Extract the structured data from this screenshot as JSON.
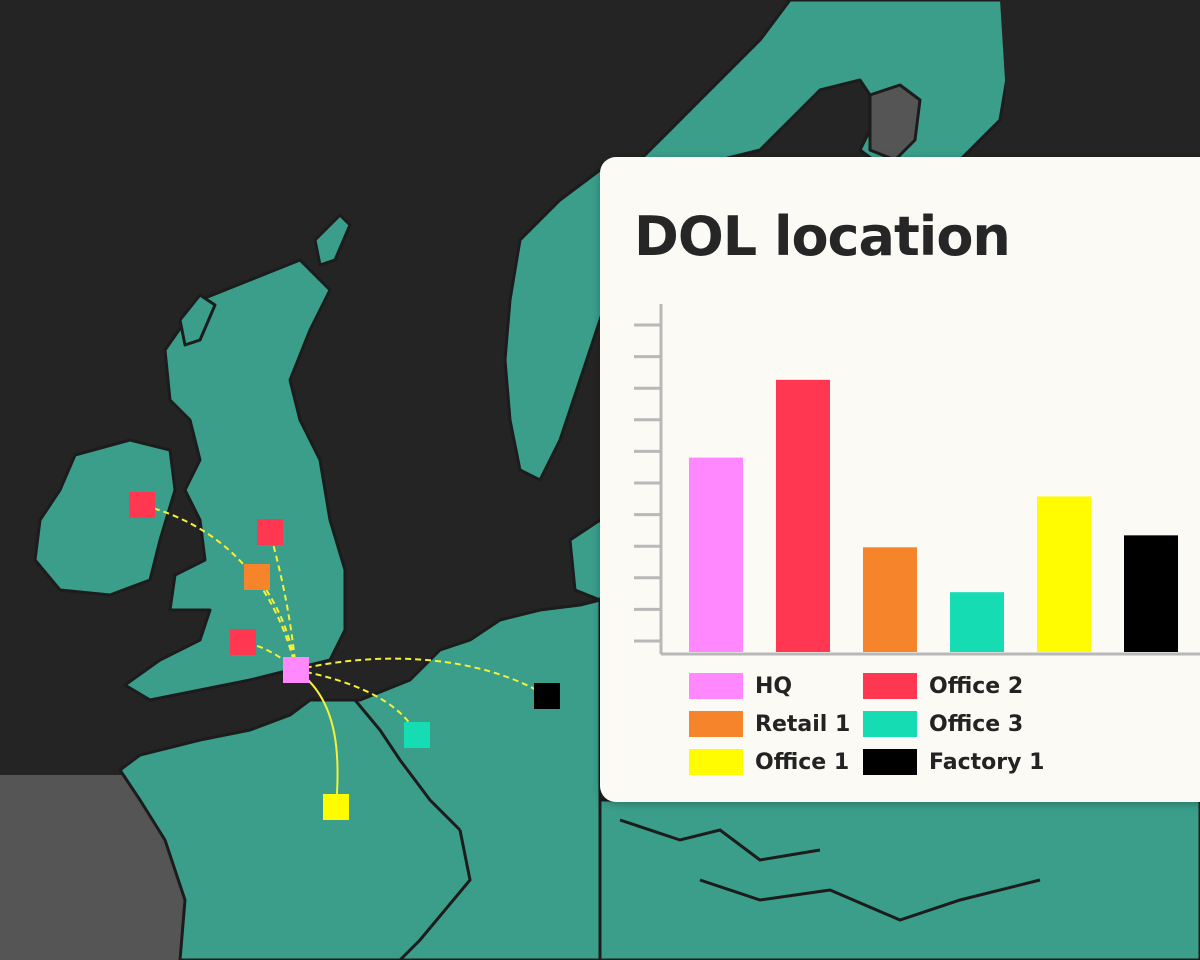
{
  "title": "DOL location",
  "colors": {
    "background": "#242424",
    "land": "#3a9e8a",
    "border": "#1c1c1c",
    "grey_region": "#555555",
    "route_line": "#f5f03a",
    "card_bg": "#fbfaf5"
  },
  "sites": [
    {
      "name": "HQ",
      "color": "#ff88ff",
      "icon": "square-marker"
    },
    {
      "name": "Office 2",
      "color": "#ff3750",
      "icon": "square-marker"
    },
    {
      "name": "Retail 1",
      "color": "#f5842a",
      "icon": "square-marker"
    },
    {
      "name": "Office 3",
      "color": "#16dcb4",
      "icon": "square-marker"
    },
    {
      "name": "Office 1",
      "color": "#fffb00",
      "icon": "square-marker"
    },
    {
      "name": "Factory 1",
      "color": "#000000",
      "icon": "square-marker"
    }
  ],
  "chart_data": {
    "type": "bar",
    "title": "DOL location",
    "categories": [
      "HQ",
      "Office 2",
      "Retail 1",
      "Office 3",
      "Office 1",
      "Factory 1"
    ],
    "values": [
      6.5,
      9.1,
      3.5,
      2.0,
      5.2,
      3.9
    ],
    "colors": [
      "#ff88ff",
      "#ff3750",
      "#f5842a",
      "#16dcb4",
      "#fffb00",
      "#000000"
    ],
    "ylim": [
      0,
      11
    ],
    "y_tick_count": 11,
    "y_tick_labels_visible": false,
    "grid": false,
    "legend": {
      "placement": "bottom",
      "columns": 2
    }
  }
}
